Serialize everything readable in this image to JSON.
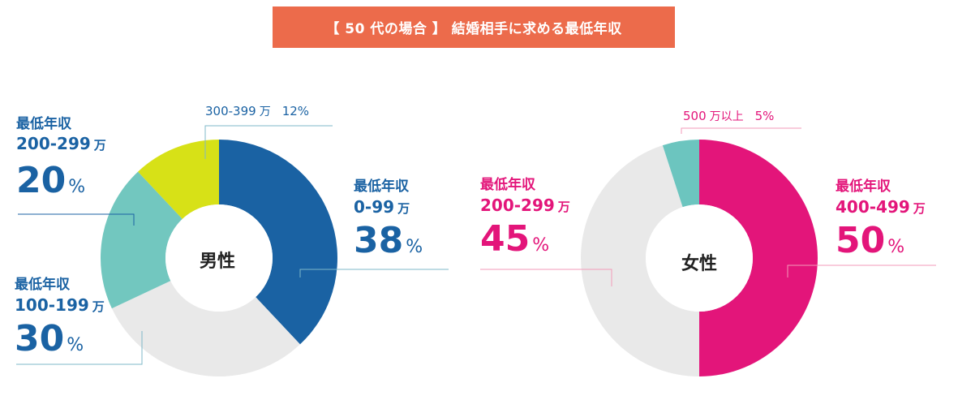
{
  "title": "【 50 代の場合 】 結婚相手に求める最低年収",
  "colors": {
    "title_bg": "#ec6b4b",
    "male_text": "#1a62a3",
    "female_text": "#e3157a",
    "leader_male": "#7fb8c9",
    "leader_female": "#f39ab9"
  },
  "chart_data": [
    {
      "type": "pie",
      "title": "男性",
      "center_label": "男性",
      "series": [
        {
          "name": "0-99 万",
          "value": 38,
          "color": "#1a62a3"
        },
        {
          "name": "100-199 万",
          "value": 30,
          "color": "#e9e9e9"
        },
        {
          "name": "200-299 万",
          "value": 20,
          "color": "#72c7bf"
        },
        {
          "name": "300-399 万",
          "value": 12,
          "color": "#d7e117"
        }
      ]
    },
    {
      "type": "pie",
      "title": "女性",
      "center_label": "女性",
      "series": [
        {
          "name": "400-499 万",
          "value": 50,
          "color": "#e3157a"
        },
        {
          "name": "200-299 万",
          "value": 45,
          "color": "#e9e9e9"
        },
        {
          "name": "500 万以上",
          "value": 5,
          "color": "#6cc5bf"
        }
      ]
    }
  ],
  "labels": {
    "male_0_99": {
      "category": "最低年収",
      "range": "0-99",
      "unit": "万",
      "pct": "38",
      "pct_unit": "%"
    },
    "male_100_199": {
      "category": "最低年収",
      "range": "100-199",
      "unit": "万",
      "pct": "30",
      "pct_unit": "%"
    },
    "male_200_299": {
      "category": "最低年収",
      "range": "200-299",
      "unit": "万",
      "pct": "20",
      "pct_unit": "%"
    },
    "male_300_399": {
      "range": "300-399",
      "unit": "万",
      "pct": "12%"
    },
    "female_400_499": {
      "category": "最低年収",
      "range": "400-499",
      "unit": "万",
      "pct": "50",
      "pct_unit": "%"
    },
    "female_200_299": {
      "category": "最低年収",
      "range": "200-299",
      "unit": "万",
      "pct": "45",
      "pct_unit": "%"
    },
    "female_500": {
      "range": "500",
      "unit": "万以上",
      "pct": "5%"
    }
  }
}
